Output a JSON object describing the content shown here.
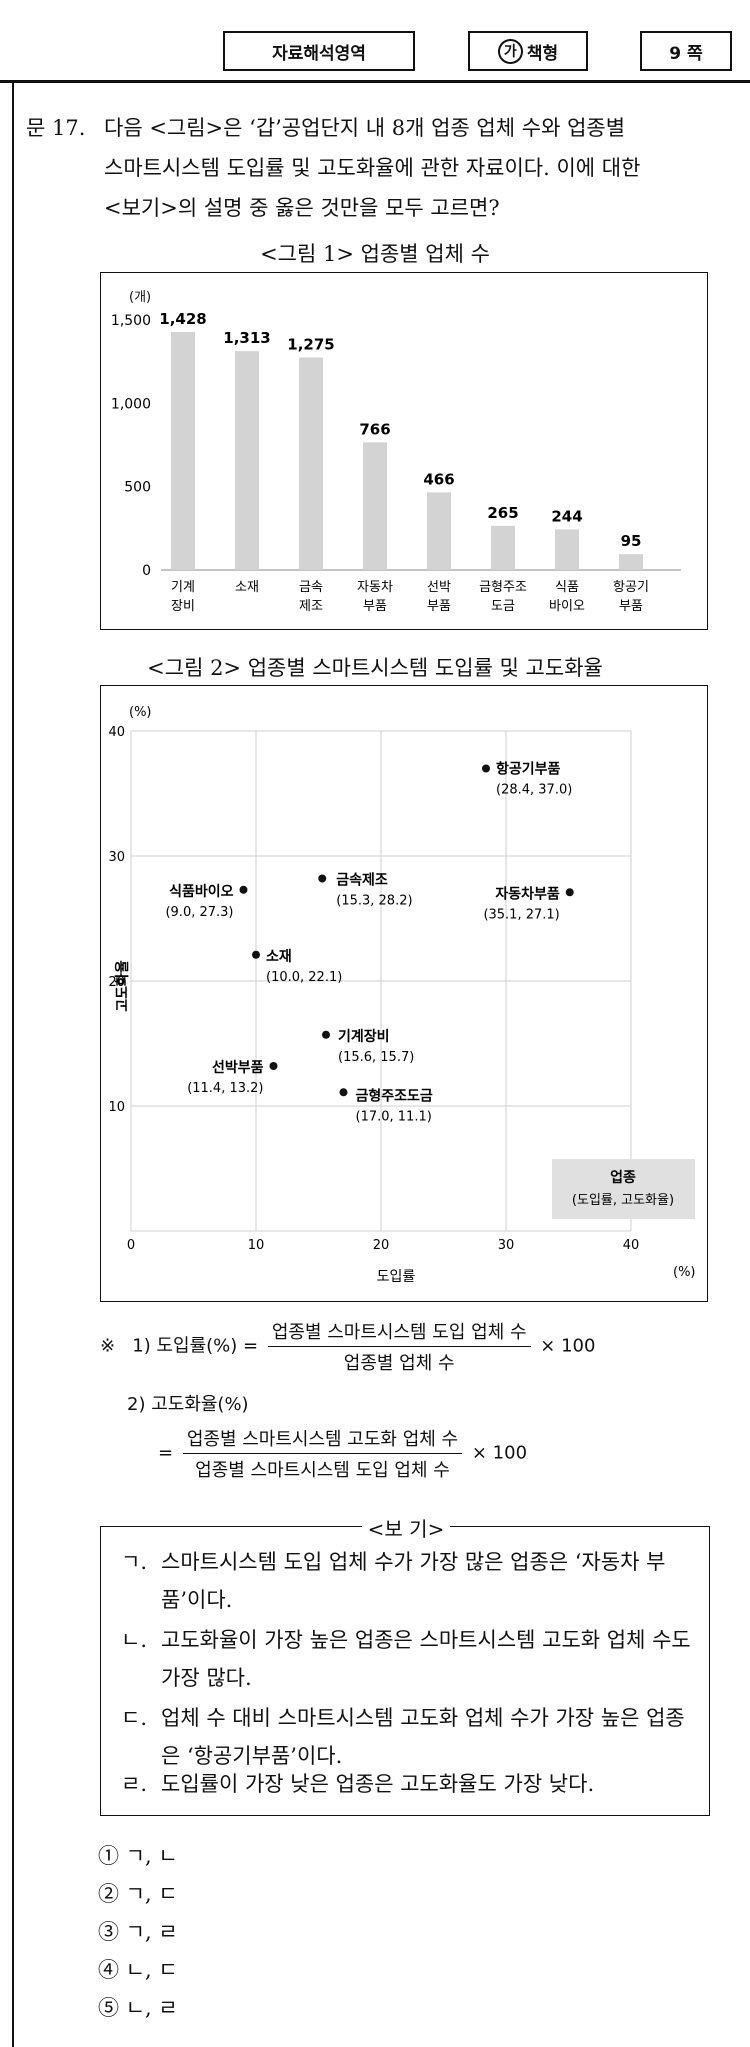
{
  "header": {
    "section": "자료해석영역",
    "type_mark": "가",
    "type_suffix": "책형",
    "page": "9 쪽"
  },
  "question": {
    "number": "문 17.",
    "lines": [
      "다음 <그림>은 ‘갑’공업단지 내 8개 업종 업체 수와 업종별",
      "스마트시스템 도입률 및 고도화율에 관한 자료이다. 이에 대한",
      "<보기>의 설명 중 옳은 것만을 모두 고르면?"
    ]
  },
  "figure1": {
    "title": "<그림 1> 업종별 업체 수",
    "unit": "(개)",
    "y_ticks": [
      "1,500",
      "1,000",
      "500",
      "0"
    ]
  },
  "figure2": {
    "title": "<그림 2> 업종별 스마트시스템 도입률 및 고도화율",
    "legend_title": "업종",
    "legend_sub": "(도입률, 고도화율)"
  },
  "chart_data": [
    {
      "type": "bar",
      "title": "<그림 1> 업종별 업체 수",
      "ylabel": "(개)",
      "ylim": [
        0,
        1500
      ],
      "yticks": [
        0,
        500,
        1000,
        1500
      ],
      "grid": false,
      "categories": [
        [
          "기계",
          "장비"
        ],
        [
          "소재"
        ],
        [
          "금속",
          "제조"
        ],
        [
          "자동차",
          "부품"
        ],
        [
          "선박",
          "부품"
        ],
        [
          "금형주조",
          "도금"
        ],
        [
          "식품",
          "바이오"
        ],
        [
          "항공기",
          "부품"
        ]
      ],
      "values": [
        1428,
        1313,
        1275,
        766,
        466,
        265,
        244,
        95
      ],
      "value_labels": [
        "1,428",
        "1,313",
        "1,275",
        "766",
        "466",
        "265",
        "244",
        "95"
      ],
      "bar_color": "#d3d3d3"
    },
    {
      "type": "scatter",
      "title": "<그림 2> 업종별 스마트시스템 도입률 및 고도화율",
      "xlabel": "도입률",
      "ylabel": "고도화율",
      "x_unit": "(%)",
      "y_unit": "(%)",
      "xlim": [
        0,
        40
      ],
      "ylim": [
        0,
        40
      ],
      "xticks": [
        0,
        10,
        20,
        30,
        40
      ],
      "yticks": [
        10,
        20,
        30,
        40
      ],
      "grid": true,
      "legend": "bottom-right",
      "points": [
        {
          "name": "항공기부품",
          "coord": "(28.4, 37.0)",
          "x": 28.4,
          "y": 37.0
        },
        {
          "name": "금속제조",
          "coord": "(15.3, 28.2)",
          "x": 15.3,
          "y": 28.2
        },
        {
          "name": "식품바이오",
          "coord": "(9.0, 27.3)",
          "x": 9.0,
          "y": 27.3
        },
        {
          "name": "자동차부품",
          "coord": "(35.1, 27.1)",
          "x": 35.1,
          "y": 27.1
        },
        {
          "name": "소재",
          "coord": "(10.0, 22.1)",
          "x": 10.0,
          "y": 22.1
        },
        {
          "name": "기계장비",
          "coord": "(15.6, 15.7)",
          "x": 15.6,
          "y": 15.7
        },
        {
          "name": "선박부품",
          "coord": "(11.4, 13.2)",
          "x": 11.4,
          "y": 13.2
        },
        {
          "name": "금형주조도금",
          "coord": "(17.0, 11.1)",
          "x": 17.0,
          "y": 11.1
        }
      ]
    }
  ],
  "notes": {
    "mark": "※",
    "n1_label": "1) 도입률(%) =",
    "n1_num": "업종별 스마트시스템 도입 업체 수",
    "n1_den": "업종별 업체 수",
    "n1_mult": "× 100",
    "n2_label": "2) 고도화율(%)",
    "n2_eq": "=",
    "n2_num": "업종별 스마트시스템 고도화 업체 수",
    "n2_den": "업종별 스마트시스템 도입 업체 수",
    "n2_mult": "× 100"
  },
  "bogi": {
    "title": "<보 기>",
    "items": [
      {
        "mark": "ㄱ.",
        "text": "스마트시스템 도입 업체 수가 가장 많은 업종은 ‘자동차 부품’이다."
      },
      {
        "mark": "ㄴ.",
        "text": "고도화율이 가장 높은 업종은 스마트시스템 고도화 업체 수도 가장 많다."
      },
      {
        "mark": "ㄷ.",
        "text": "업체 수 대비 스마트시스템 고도화 업체 수가 가장 높은 업종은 ‘항공기부품’이다."
      },
      {
        "mark": "ㄹ.",
        "text": "도입률이 가장 낮은 업종은 고도화율도 가장 낮다."
      }
    ]
  },
  "choices": [
    "① ㄱ, ㄴ",
    "② ㄱ, ㄷ",
    "③ ㄱ, ㄹ",
    "④ ㄴ, ㄷ",
    "⑤ ㄴ, ㄹ"
  ]
}
